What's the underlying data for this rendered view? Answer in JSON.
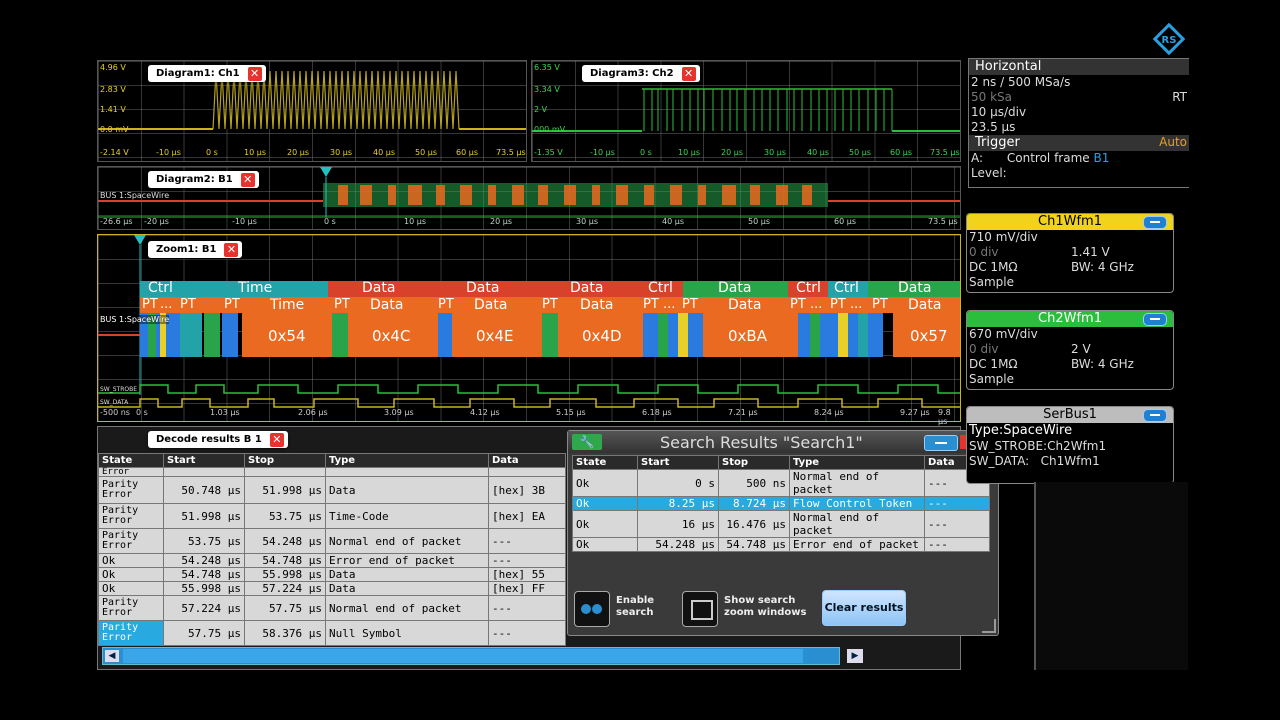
{
  "diagram1": {
    "title": "Diagram1: Ch1",
    "y_labels": [
      "4.96 V",
      "2.83 V",
      "1.41 V",
      "0.0 mV",
      "-2.14 V"
    ],
    "x_labels": [
      "-10 µs",
      "0 s",
      "10 µs",
      "20 µs",
      "30 µs",
      "40 µs",
      "50 µs",
      "60 µs",
      "73.5 µs"
    ]
  },
  "diagram3": {
    "title": "Diagram3: Ch2",
    "y_labels": [
      "6.35 V",
      "3.34 V",
      "2 V",
      "000 mV",
      "-1.35 V"
    ],
    "x_labels": [
      "-10 µs",
      "0 s",
      "10 µs",
      "20 µs",
      "30 µs",
      "40 µs",
      "50 µs",
      "60 µs",
      "73.5 µs"
    ]
  },
  "diagram2": {
    "title": "Diagram2: B1",
    "bus_label": "BUS 1:SpaceWire",
    "x_labels": [
      "-26.6 µs",
      "-20 µs",
      "-10 µs",
      "0 s",
      "10 µs",
      "20 µs",
      "30 µs",
      "40 µs",
      "50 µs",
      "60 µs",
      "73.5 µs"
    ]
  },
  "zoom1": {
    "title": "Zoom1: B1",
    "bus_label": "BUS 1:SpaceWire",
    "strobe_label": "SW_STROBE",
    "data_label": "SW_DATA",
    "x_labels": [
      "-500 ns",
      "0 s",
      "1.03 µs",
      "2.06 µs",
      "3.09 µs",
      "4.12 µs",
      "5.15 µs",
      "6.18 µs",
      "7.21 µs",
      "8.24 µs",
      "9.27 µs",
      "9.8 µs"
    ],
    "frames": [
      {
        "cat": "Ctrl",
        "field": "PT",
        "value": "",
        "color": "#23a3a8"
      },
      {
        "cat": "Time",
        "field": "Time",
        "value": "0x54",
        "color": "#23a3a8"
      },
      {
        "cat": "Data",
        "field": "Data",
        "value": "0x4C",
        "color": "#d9422a"
      },
      {
        "cat": "Data",
        "field": "Data",
        "value": "0x4E",
        "color": "#d9422a"
      },
      {
        "cat": "Data",
        "field": "Data",
        "value": "0x4D",
        "color": "#d9422a"
      },
      {
        "cat": "Ctrl",
        "field": "PT",
        "value": "",
        "color": "#d9422a"
      },
      {
        "cat": "Data",
        "field": "Data",
        "value": "0xBA",
        "color": "#2aa44a"
      },
      {
        "cat": "Ctrl",
        "field": "PT",
        "value": "",
        "color": "#d9422a"
      },
      {
        "cat": "Ctrl",
        "field": "PT",
        "value": "",
        "color": "#23a3a8"
      },
      {
        "cat": "Data",
        "field": "Data",
        "value": "0x57",
        "color": "#2aa44a"
      }
    ],
    "pt_label": "PT",
    "ellipsis": "..."
  },
  "decode": {
    "title": "Decode results B 1",
    "columns": [
      "State",
      "Start",
      "Stop",
      "Type",
      "Data"
    ],
    "rows": [
      {
        "state": "Error",
        "start": "",
        "stop": "",
        "type": "",
        "data": ""
      },
      {
        "state": "Parity Error",
        "start": "50.748 µs",
        "stop": "51.998 µs",
        "type": "Data",
        "data": "[hex] 3B"
      },
      {
        "state": "Parity Error",
        "start": "51.998 µs",
        "stop": "53.75 µs",
        "type": "Time-Code",
        "data": "[hex] EA"
      },
      {
        "state": "Parity Error",
        "start": "53.75 µs",
        "stop": "54.248 µs",
        "type": "Normal end of packet",
        "data": "---"
      },
      {
        "state": "Ok",
        "start": "54.248 µs",
        "stop": "54.748 µs",
        "type": "Error end of packet",
        "data": "---"
      },
      {
        "state": "Ok",
        "start": "54.748 µs",
        "stop": "55.998 µs",
        "type": "Data",
        "data": "[hex] 55"
      },
      {
        "state": "Ok",
        "start": "55.998 µs",
        "stop": "57.224 µs",
        "type": "Data",
        "data": "[hex] FF"
      },
      {
        "state": "Parity Error",
        "start": "57.224 µs",
        "stop": "57.75 µs",
        "type": "Normal end of packet",
        "data": "---"
      },
      {
        "state": "Parity Error",
        "start": "57.75 µs",
        "stop": "58.376 µs",
        "type": "Null Symbol",
        "data": "---"
      }
    ]
  },
  "search": {
    "title": "Search Results \"Search1\"",
    "columns": [
      "State",
      "Start",
      "Stop",
      "Type",
      "Data"
    ],
    "rows": [
      {
        "state": "Ok",
        "start": "0 s",
        "stop": "500 ns",
        "type": "Normal end of packet",
        "data": "---"
      },
      {
        "state": "Ok",
        "start": "8.25 µs",
        "stop": "8.724 µs",
        "type": "Flow Control Token",
        "data": "---"
      },
      {
        "state": "Ok",
        "start": "16 µs",
        "stop": "16.476 µs",
        "type": "Normal end of packet",
        "data": "---"
      },
      {
        "state": "Ok",
        "start": "54.248 µs",
        "stop": "54.748 µs",
        "type": "Error end of packet",
        "data": "---"
      }
    ],
    "enable_label": "Enable search",
    "zoom_label": "Show search zoom windows",
    "clear_label": "Clear results"
  },
  "horizontal": {
    "title": "Horizontal",
    "resolution": "2 ns / 500 MSa/s",
    "samples": "50 kSa",
    "rt": "RT",
    "timebase": "10 µs/div",
    "position": "23.5 µs"
  },
  "trigger": {
    "title": "Trigger",
    "mode": "Auto",
    "source_label": "A:",
    "source": "Control frame",
    "source_bus": "B1",
    "level_label": "Level:"
  },
  "ch1": {
    "title": "Ch1Wfm1",
    "scale": "710 mV/div",
    "offset": "0 div",
    "offset_v": "1.41 V",
    "coupling": "DC 1MΩ",
    "bw": "BW: 4 GHz",
    "acq": "Sample",
    "color": "#f2d31b"
  },
  "ch2": {
    "title": "Ch2Wfm1",
    "scale": "670 mV/div",
    "offset": "0 div",
    "offset_v": "2 V",
    "coupling": "DC 1MΩ",
    "bw": "BW: 4 GHz",
    "acq": "Sample",
    "color": "#2bbd3c"
  },
  "serbus": {
    "title": "SerBus1",
    "type": "Type:SpaceWire",
    "strobe": "SW_STROBE:Ch2Wfm1",
    "data": "SW_DATA:   Ch1Wfm1"
  }
}
